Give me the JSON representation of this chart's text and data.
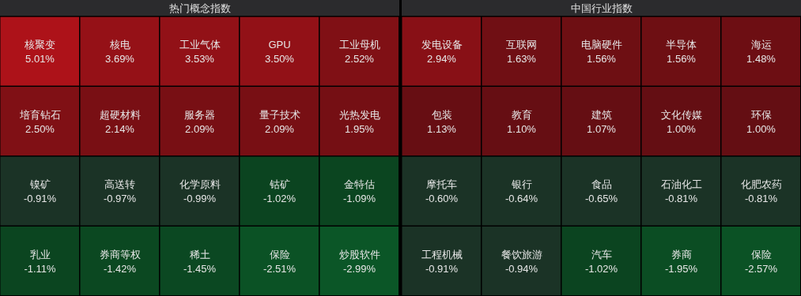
{
  "chart_data": [
    {
      "type": "other",
      "title": "热门概念指数",
      "categories": [
        "核聚变",
        "核电",
        "工业气体",
        "GPU",
        "工业母机",
        "培育钻石",
        "超硬材料",
        "服务器",
        "量子技术",
        "光热发电",
        "镍矿",
        "高送转",
        "化学原料",
        "钴矿",
        "金特估",
        "乳业",
        "券商等权",
        "稀土",
        "保险",
        "炒股软件"
      ],
      "values": [
        5.01,
        3.69,
        3.53,
        3.5,
        2.52,
        2.5,
        2.14,
        2.09,
        2.09,
        1.95,
        -0.91,
        -0.97,
        -0.99,
        -1.02,
        -1.09,
        -1.11,
        -1.42,
        -1.45,
        -2.51,
        -2.99
      ],
      "value_labels": [
        "5.01%",
        "3.69%",
        "3.53%",
        "3.50%",
        "2.52%",
        "2.50%",
        "2.14%",
        "2.09%",
        "2.09%",
        "1.95%",
        "-0.91%",
        "-0.97%",
        "-0.99%",
        "-1.02%",
        "-1.09%",
        "-1.11%",
        "-1.42%",
        "-1.45%",
        "-2.51%",
        "-2.99%"
      ]
    },
    {
      "type": "other",
      "title": "中国行业指数",
      "categories": [
        "发电设备",
        "互联网",
        "电脑硬件",
        "半导体",
        "海运",
        "包装",
        "教育",
        "建筑",
        "文化传媒",
        "环保",
        "摩托车",
        "银行",
        "食品",
        "石油化工",
        "化肥农药",
        "工程机械",
        "餐饮旅游",
        "汽车",
        "券商",
        "保险"
      ],
      "values": [
        2.94,
        1.63,
        1.56,
        1.56,
        1.48,
        1.13,
        1.1,
        1.07,
        1.0,
        1.0,
        -0.6,
        -0.64,
        -0.65,
        -0.81,
        -0.81,
        -0.91,
        -0.94,
        -1.02,
        -1.95,
        -2.57
      ],
      "value_labels": [
        "2.94%",
        "1.63%",
        "1.56%",
        "1.56%",
        "1.48%",
        "1.13%",
        "1.10%",
        "1.07%",
        "1.00%",
        "1.00%",
        "-0.60%",
        "-0.64%",
        "-0.65%",
        "-0.81%",
        "-0.81%",
        "-0.91%",
        "-0.94%",
        "-1.02%",
        "-1.95%",
        "-2.57%"
      ]
    }
  ]
}
